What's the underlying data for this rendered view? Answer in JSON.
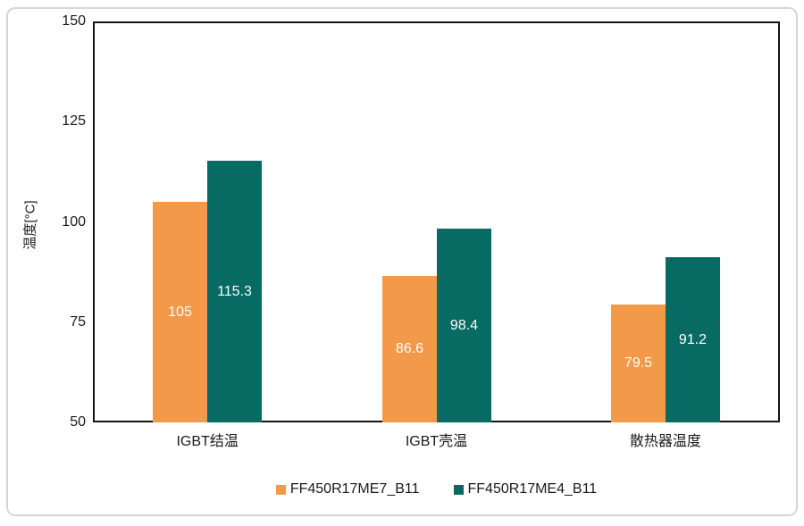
{
  "chart_data": {
    "type": "bar",
    "title": "",
    "xlabel": "",
    "ylabel": "温度[°C]",
    "categories": [
      "IGBT结温",
      "IGBT壳温",
      "散热器温度"
    ],
    "series": [
      {
        "name": "FF450R17ME7_B11",
        "color": "#F2994A",
        "values": [
          105,
          86.6,
          79.5
        ],
        "labels": [
          "105",
          "86.6",
          "79.5"
        ]
      },
      {
        "name": "FF450R17ME4_B11",
        "color": "#086B63",
        "values": [
          115.3,
          98.4,
          91.2
        ],
        "labels": [
          "115.3",
          "98.4",
          "91.2"
        ]
      }
    ],
    "ylim": [
      50,
      150
    ],
    "yticks": [
      50,
      75,
      100,
      125,
      150
    ],
    "grid": false,
    "legend_position": "bottom",
    "value_label_color": "#ffffff",
    "axis_color": "#141414",
    "frame_border_color": "#d6d6d6"
  }
}
